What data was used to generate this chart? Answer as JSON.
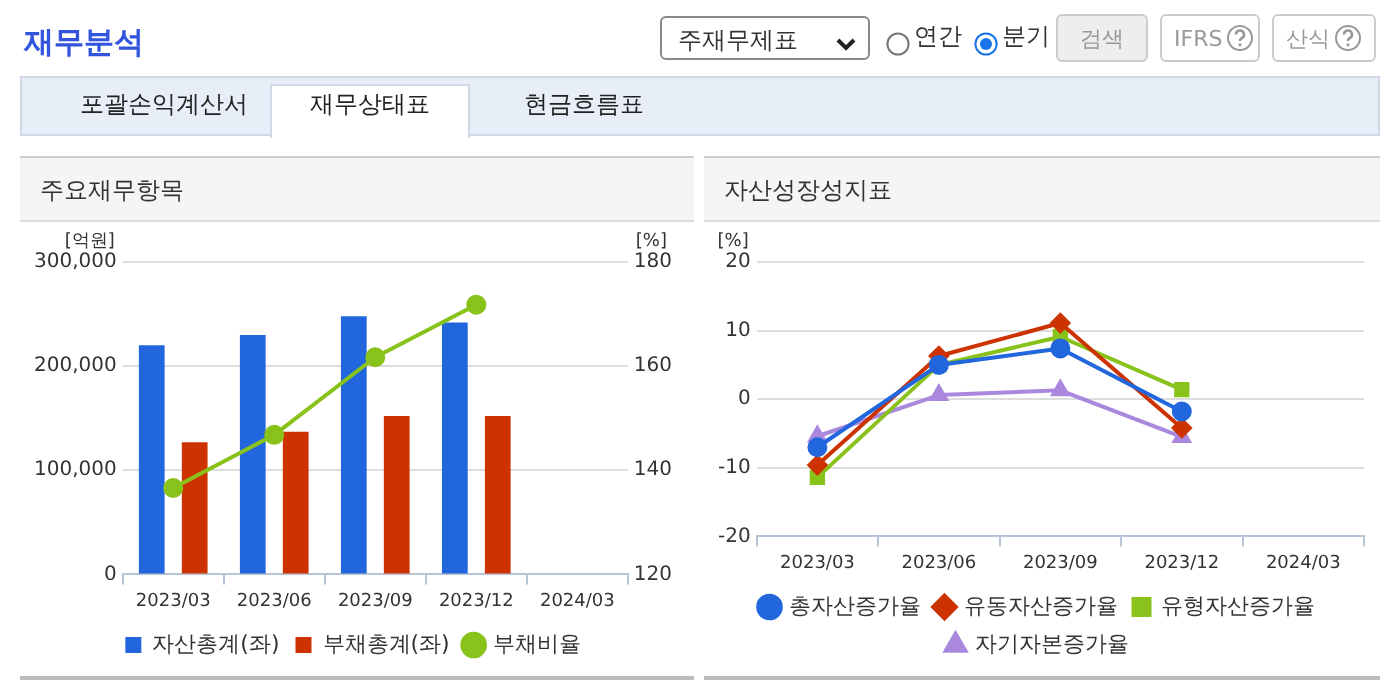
{
  "chart_data": [
    {
      "type": "other",
      "title": "재무분석",
      "annotations": [
        "주재무제표",
        "연간",
        "분기",
        "검색",
        "IFRS",
        "산식",
        "포괄손익계산서",
        "재무상태표",
        "현금흐름표"
      ]
    },
    {
      "type": "bar",
      "title": "주요재무항목",
      "categories": [
        "2023/03",
        "2023/06",
        "2023/09",
        "2023/12",
        "2024/03"
      ],
      "ylabel": "[억원]",
      "y2label": "[%]",
      "ylim": [
        0,
        300000
      ],
      "yticks": [
        0,
        {
          "value": 100000,
          "label": "100,000"
        },
        {
          "value": 200000,
          "label": "200,000"
        },
        {
          "value": 300000,
          "label": "300,000"
        }
      ],
      "y2lim": [
        120,
        180
      ],
      "y2ticks": [
        120,
        140,
        160,
        180
      ],
      "grid": "y",
      "legend": "bottom",
      "series": [
        {
          "name": "자산총계(좌)",
          "color": "#2266dd",
          "values": [
            220000,
            230000,
            248000,
            242000,
            null
          ]
        },
        {
          "name": "부채총계(좌)",
          "color": "#cc3300",
          "values": [
            127000,
            137000,
            152000,
            152000,
            null
          ]
        },
        {
          "name": "부채비율",
          "type": "line",
          "axis": "y2",
          "marker": "circle",
          "color": "#88c21a",
          "values": [
            136.6,
            146.8,
            161.7,
            171.8,
            null
          ]
        }
      ]
    },
    {
      "type": "line",
      "title": "자산성장성지표",
      "categories": [
        "2023/03",
        "2023/06",
        "2023/09",
        "2023/12",
        "2024/03"
      ],
      "ylabel": "[%]",
      "ylim": [
        -20,
        20
      ],
      "yticks": [
        -20,
        -10,
        0,
        10,
        20
      ],
      "grid": "y",
      "legend": "bottom",
      "series": [
        {
          "name": "총자산증가율",
          "marker": "circle",
          "color": "#2266dd",
          "values": [
            -7.0,
            5.0,
            7.4,
            -1.8,
            null
          ]
        },
        {
          "name": "유동자산증가율",
          "marker": "diamond",
          "color": "#cc3300",
          "values": [
            -9.6,
            6.3,
            11.1,
            -4.2,
            null
          ]
        },
        {
          "name": "유형자산증가율",
          "marker": "square",
          "color": "#88c21a",
          "values": [
            -11.4,
            5.0,
            9.1,
            1.4,
            null
          ]
        },
        {
          "name": "자기자본증가율",
          "marker": "triangle",
          "color": "#aa88dd",
          "values": [
            -5.4,
            0.6,
            1.3,
            -5.5,
            null
          ]
        }
      ]
    }
  ]
}
